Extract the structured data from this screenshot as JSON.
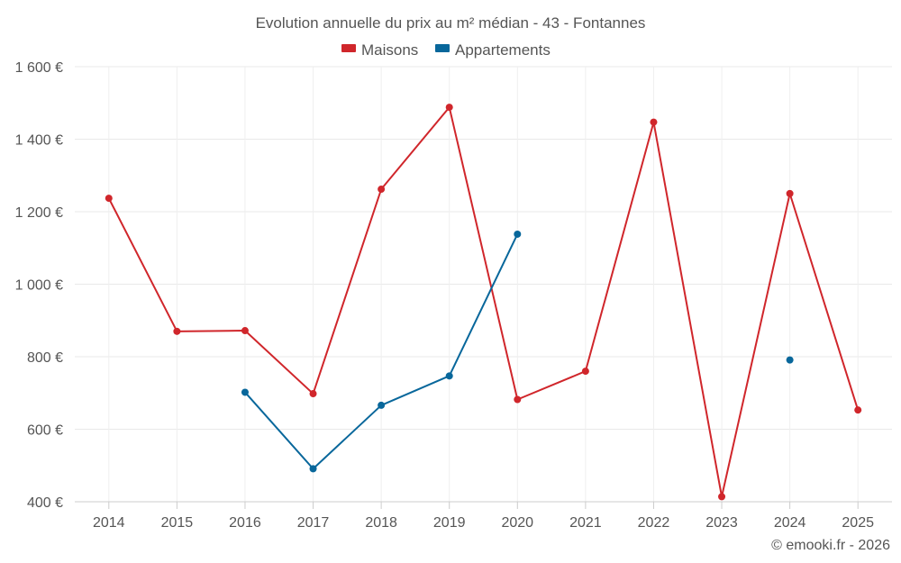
{
  "chart_data": {
    "type": "line",
    "title": "Evolution annuelle du prix au m² médian - 43 - Fontannes",
    "categories": [
      "2014",
      "2015",
      "2016",
      "2017",
      "2018",
      "2019",
      "2020",
      "2021",
      "2022",
      "2023",
      "2024",
      "2025"
    ],
    "series": [
      {
        "name": "Maisons",
        "color": "#d0262b",
        "values": [
          1237,
          870,
          872,
          698,
          1262,
          1488,
          682,
          760,
          1447,
          414,
          1250,
          653
        ]
      },
      {
        "name": "Appartements",
        "color": "#08679b",
        "values": [
          null,
          null,
          702,
          491,
          666,
          747,
          1138,
          null,
          null,
          null,
          791,
          null
        ]
      }
    ],
    "y_ticks": [
      400,
      600,
      800,
      1000,
      1200,
      1400,
      1600
    ],
    "y_tick_labels": [
      "400 €",
      "600 €",
      "800 €",
      "1 000 €",
      "1 200 €",
      "1 400 €",
      "1 600 €"
    ],
    "ylim": [
      400,
      1600
    ],
    "xlabel": "",
    "ylabel": "",
    "grid": true,
    "legend_position": "top-center",
    "credit": "© emooki.fr - 2026"
  }
}
